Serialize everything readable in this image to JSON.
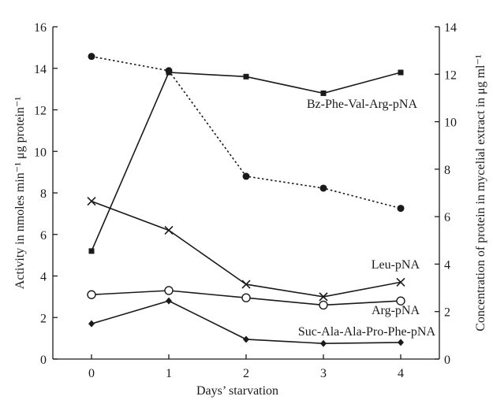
{
  "chart_data": {
    "type": "line",
    "xlabel": "Days’ starvation",
    "ylabel_left": "Activity in nmoles min⁻¹ μg protein⁻¹",
    "ylabel_right": "Concentration of protein in mycelial extract in μg ml⁻¹",
    "x": [
      0,
      1,
      2,
      3,
      4
    ],
    "x_ticks": [
      "0",
      "1",
      "2",
      "3",
      "4"
    ],
    "xlim": [
      -0.5,
      4.5
    ],
    "ylim_left": [
      0,
      16
    ],
    "ylim_right": [
      0,
      14
    ],
    "y_left_ticks": [
      "0",
      "2",
      "4",
      "6",
      "8",
      "10",
      "12",
      "14",
      "16"
    ],
    "y_right_ticks": [
      "0",
      "2",
      "4",
      "6",
      "8",
      "10",
      "12",
      "14"
    ],
    "grid": false,
    "series": [
      {
        "name": "Bz-Phe-Val-Arg-pNA",
        "axis": "left",
        "marker": "square",
        "linestyle": "solid",
        "values": [
          5.2,
          13.8,
          13.6,
          12.8,
          13.8
        ]
      },
      {
        "name": "Leu-pNA",
        "axis": "left",
        "marker": "x",
        "linestyle": "solid",
        "values": [
          7.6,
          6.2,
          3.6,
          3.0,
          3.7
        ]
      },
      {
        "name": "Arg-pNA",
        "axis": "left",
        "marker": "open-circle",
        "linestyle": "solid",
        "values": [
          3.1,
          3.3,
          2.95,
          2.6,
          2.8
        ]
      },
      {
        "name": "Suc-Ala-Ala-Pro-Phe-pNA",
        "axis": "left",
        "marker": "diamond",
        "linestyle": "solid",
        "values": [
          1.7,
          2.8,
          0.95,
          0.75,
          0.8
        ]
      },
      {
        "name": "",
        "axis": "right",
        "marker": "filled-circle",
        "linestyle": "dotted",
        "values": [
          12.75,
          12.15,
          7.7,
          7.2,
          6.35
        ]
      }
    ]
  }
}
